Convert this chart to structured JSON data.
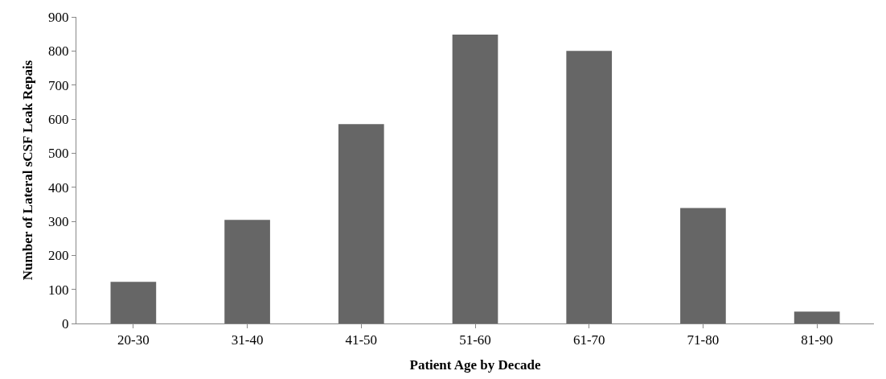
{
  "chart_data": {
    "type": "bar",
    "xlabel": "Patient Age by Decade",
    "ylabel": "Number of Lateral sCSF Leak Repais",
    "categories": [
      "20-30",
      "31-40",
      "41-50",
      "51-60",
      "61-70",
      "71-80",
      "81-90"
    ],
    "values": [
      122,
      304,
      585,
      848,
      800,
      339,
      35
    ],
    "color": "#666666",
    "ylim": [
      0,
      900
    ],
    "yticks": [
      0,
      100,
      200,
      300,
      400,
      500,
      600,
      700,
      800,
      900
    ]
  }
}
